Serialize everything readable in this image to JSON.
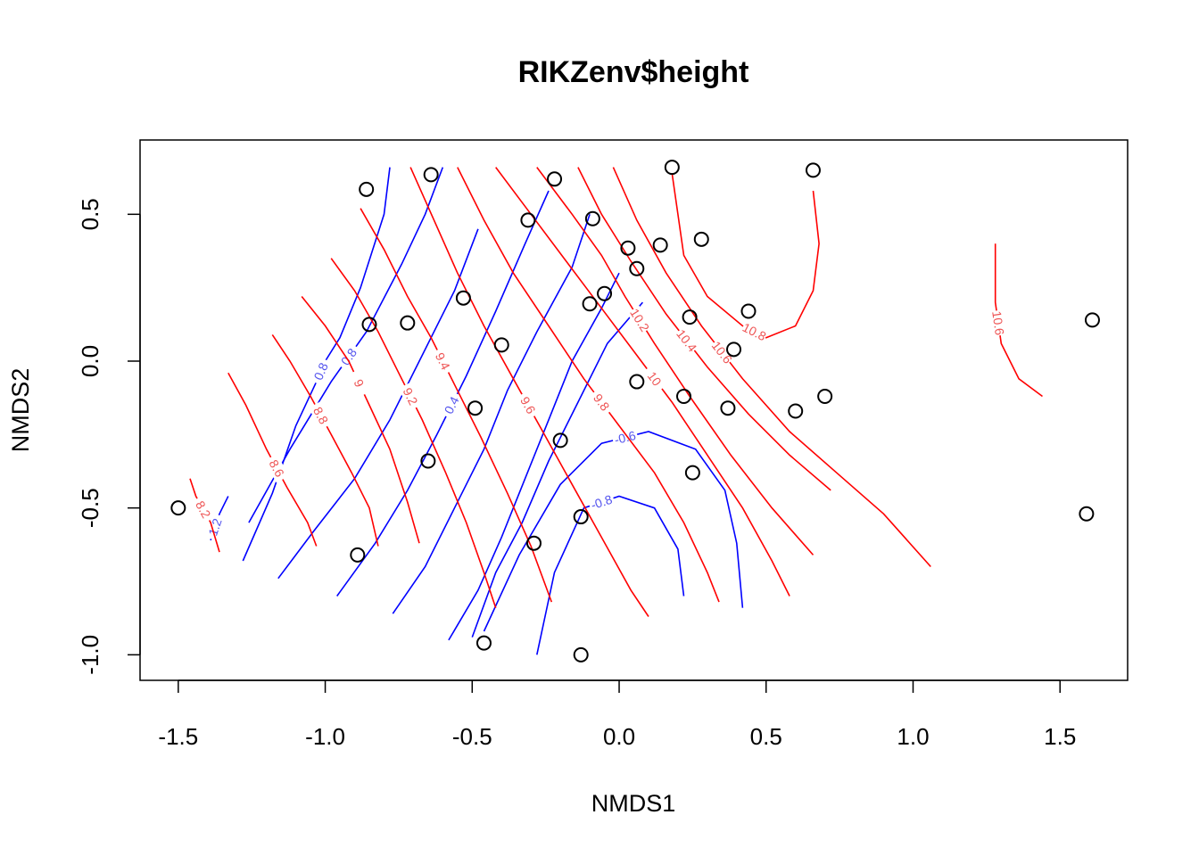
{
  "chart_data": {
    "type": "scatter",
    "title": "RIKZenv$height",
    "xlabel": "NMDS1",
    "ylabel": "NMDS2",
    "xlim": [
      -1.63,
      1.73
    ],
    "ylim": [
      -1.087,
      0.753
    ],
    "xticks": [
      "-1.5",
      "-1.0",
      "-0.5",
      "0.0",
      "0.5",
      "1.0",
      "1.5"
    ],
    "xtick_values": [
      -1.5,
      -1.0,
      -0.5,
      0.0,
      0.5,
      1.0,
      1.5
    ],
    "yticks": [
      "-1.0",
      "-0.5",
      "0.0",
      "0.5"
    ],
    "ytick_values": [
      -1.0,
      -0.5,
      0.0,
      0.5
    ],
    "grid": false,
    "point_color": "#000000",
    "points": [
      [
        -0.86,
        0.585
      ],
      [
        -0.64,
        0.635
      ],
      [
        -0.22,
        0.62
      ],
      [
        0.18,
        0.66
      ],
      [
        0.66,
        0.65
      ],
      [
        -0.31,
        0.48
      ],
      [
        -0.09,
        0.485
      ],
      [
        0.03,
        0.385
      ],
      [
        0.14,
        0.395
      ],
      [
        0.28,
        0.415
      ],
      [
        0.06,
        0.315
      ],
      [
        -0.53,
        0.215
      ],
      [
        -0.05,
        0.23
      ],
      [
        -0.1,
        0.195
      ],
      [
        0.44,
        0.17
      ],
      [
        0.24,
        0.15
      ],
      [
        -0.85,
        0.125
      ],
      [
        -0.72,
        0.13
      ],
      [
        -0.4,
        0.055
      ],
      [
        0.39,
        0.04
      ],
      [
        1.61,
        0.14
      ],
      [
        0.06,
        -0.07
      ],
      [
        0.22,
        -0.12
      ],
      [
        0.7,
        -0.12
      ],
      [
        -0.49,
        -0.16
      ],
      [
        0.37,
        -0.16
      ],
      [
        0.6,
        -0.17
      ],
      [
        -0.2,
        -0.27
      ],
      [
        -0.65,
        -0.34
      ],
      [
        0.25,
        -0.38
      ],
      [
        -1.5,
        -0.5
      ],
      [
        1.59,
        -0.52
      ],
      [
        -0.13,
        -0.53
      ],
      [
        -0.29,
        -0.62
      ],
      [
        -0.89,
        -0.66
      ],
      [
        -0.46,
        -0.96
      ],
      [
        -0.13,
        -1.0
      ]
    ],
    "contours": [
      {
        "variable": "RIKZenv$height",
        "color": "#0000ff",
        "label_color": "#5555ee",
        "levels": [
          -0.8,
          -0.6,
          -0.4,
          -0.2,
          0,
          0.2,
          0.4,
          0.6,
          0.8,
          1,
          1.2,
          1.4,
          1.6
        ],
        "lines": [
          {
            "label": "1.2",
            "points": [
              [
                -1.39,
                -0.61
              ],
              [
                -1.36,
                -0.52
              ],
              [
                -1.33,
                -0.46
              ]
            ]
          },
          {
            "label": "0.8",
            "points": [
              [
                -1.28,
                -0.68
              ],
              [
                -1.18,
                -0.45
              ],
              [
                -1.1,
                -0.22
              ],
              [
                -1.03,
                -0.07
              ],
              [
                -1.0,
                0.0
              ],
              [
                -0.95,
                0.08
              ],
              [
                -0.88,
                0.25
              ],
              [
                -0.8,
                0.5
              ],
              [
                -0.78,
                0.66
              ]
            ]
          },
          {
            "label": "0.8",
            "points": [
              [
                -1.26,
                -0.55
              ],
              [
                -1.12,
                -0.3
              ],
              [
                -0.98,
                -0.07
              ],
              [
                -0.86,
                0.1
              ],
              [
                -0.74,
                0.33
              ],
              [
                -0.66,
                0.5
              ],
              [
                -0.6,
                0.66
              ]
            ]
          },
          {
            "label": "",
            "points": [
              [
                -1.16,
                -0.74
              ],
              [
                -1.04,
                -0.58
              ],
              [
                -0.9,
                -0.4
              ],
              [
                -0.78,
                -0.2
              ],
              [
                -0.68,
                0.0
              ],
              [
                -0.56,
                0.24
              ],
              [
                -0.48,
                0.45
              ]
            ]
          },
          {
            "label": "0.4",
            "points": [
              [
                -0.96,
                -0.8
              ],
              [
                -0.83,
                -0.62
              ],
              [
                -0.72,
                -0.44
              ],
              [
                -0.62,
                -0.25
              ],
              [
                -0.52,
                -0.05
              ],
              [
                -0.42,
                0.17
              ],
              [
                -0.32,
                0.4
              ],
              [
                -0.24,
                0.58
              ]
            ]
          },
          {
            "label": "",
            "points": [
              [
                -0.77,
                -0.86
              ],
              [
                -0.66,
                -0.7
              ],
              [
                -0.56,
                -0.5
              ],
              [
                -0.46,
                -0.3
              ],
              [
                -0.38,
                -0.1
              ],
              [
                -0.28,
                0.1
              ],
              [
                -0.16,
                0.32
              ],
              [
                -0.1,
                0.5
              ]
            ]
          },
          {
            "label": "",
            "points": [
              [
                -0.58,
                -0.95
              ],
              [
                -0.48,
                -0.78
              ],
              [
                -0.4,
                -0.6
              ],
              [
                -0.32,
                -0.4
              ],
              [
                -0.24,
                -0.2
              ],
              [
                -0.16,
                0.0
              ],
              [
                -0.06,
                0.18
              ],
              [
                0.0,
                0.3
              ]
            ]
          },
          {
            "label": "",
            "points": [
              [
                -0.5,
                -0.94
              ],
              [
                -0.42,
                -0.72
              ],
              [
                -0.33,
                -0.55
              ],
              [
                -0.24,
                -0.34
              ],
              [
                -0.14,
                -0.14
              ],
              [
                -0.04,
                0.06
              ],
              [
                0.08,
                0.2
              ]
            ]
          },
          {
            "label": "-0.8",
            "points": [
              [
                -0.28,
                -1.0
              ],
              [
                -0.22,
                -0.72
              ],
              [
                -0.12,
                -0.5
              ],
              [
                0.0,
                -0.46
              ],
              [
                0.12,
                -0.5
              ],
              [
                0.2,
                -0.64
              ],
              [
                0.22,
                -0.8
              ]
            ]
          },
          {
            "label": "-0.6",
            "points": [
              [
                -0.46,
                -0.92
              ],
              [
                -0.34,
                -0.66
              ],
              [
                -0.2,
                -0.42
              ],
              [
                -0.06,
                -0.28
              ],
              [
                0.1,
                -0.24
              ],
              [
                0.26,
                -0.3
              ],
              [
                0.36,
                -0.44
              ],
              [
                0.4,
                -0.62
              ],
              [
                0.42,
                -0.84
              ]
            ]
          }
        ]
      },
      {
        "variable": "RIKZenv$height",
        "color": "#ff0000",
        "label_color": "#ee5555",
        "levels": [
          8.2,
          8.4,
          8.6,
          8.8,
          9,
          9.2,
          9.4,
          9.6,
          9.8,
          10,
          10.2,
          10.4,
          10.6,
          10.8
        ],
        "lines": [
          {
            "label": "8.2",
            "points": [
              [
                -1.46,
                -0.4
              ],
              [
                -1.44,
                -0.46
              ],
              [
                -1.39,
                -0.55
              ],
              [
                -1.36,
                -0.65
              ]
            ]
          },
          {
            "label": "8.6",
            "points": [
              [
                -1.33,
                -0.04
              ],
              [
                -1.27,
                -0.15
              ],
              [
                -1.2,
                -0.3
              ],
              [
                -1.13,
                -0.43
              ],
              [
                -1.06,
                -0.55
              ],
              [
                -1.03,
                -0.63
              ]
            ]
          },
          {
            "label": "8.8",
            "points": [
              [
                -1.18,
                0.09
              ],
              [
                -1.12,
                0.0
              ],
              [
                -1.05,
                -0.12
              ],
              [
                -0.98,
                -0.25
              ],
              [
                -0.91,
                -0.38
              ],
              [
                -0.85,
                -0.5
              ],
              [
                -0.82,
                -0.63
              ]
            ]
          },
          {
            "label": "9",
            "points": [
              [
                -1.08,
                0.22
              ],
              [
                -1.0,
                0.12
              ],
              [
                -0.92,
                0.0
              ],
              [
                -0.85,
                -0.15
              ],
              [
                -0.78,
                -0.3
              ],
              [
                -0.72,
                -0.48
              ],
              [
                -0.68,
                -0.62
              ]
            ]
          },
          {
            "label": "9.2",
            "points": [
              [
                -0.98,
                0.35
              ],
              [
                -0.9,
                0.24
              ],
              [
                -0.82,
                0.1
              ],
              [
                -0.75,
                -0.04
              ],
              [
                -0.67,
                -0.2
              ],
              [
                -0.59,
                -0.38
              ],
              [
                -0.52,
                -0.55
              ],
              [
                -0.46,
                -0.72
              ],
              [
                -0.42,
                -0.84
              ]
            ]
          },
          {
            "label": "9.4",
            "points": [
              [
                -0.88,
                0.52
              ],
              [
                -0.8,
                0.38
              ],
              [
                -0.72,
                0.22
              ],
              [
                -0.64,
                0.08
              ],
              [
                -0.56,
                -0.08
              ],
              [
                -0.47,
                -0.26
              ],
              [
                -0.38,
                -0.45
              ],
              [
                -0.3,
                -0.63
              ],
              [
                -0.23,
                -0.82
              ]
            ]
          },
          {
            "label": "9.6",
            "points": [
              [
                -0.71,
                0.66
              ],
              [
                -0.63,
                0.48
              ],
              [
                -0.55,
                0.3
              ],
              [
                -0.46,
                0.12
              ],
              [
                -0.36,
                -0.06
              ],
              [
                -0.26,
                -0.24
              ],
              [
                -0.16,
                -0.42
              ],
              [
                -0.06,
                -0.6
              ],
              [
                0.04,
                -0.78
              ],
              [
                0.1,
                -0.87
              ]
            ]
          },
          {
            "label": "9.8",
            "points": [
              [
                -0.55,
                0.66
              ],
              [
                -0.46,
                0.48
              ],
              [
                -0.36,
                0.3
              ],
              [
                -0.24,
                0.12
              ],
              [
                -0.12,
                -0.06
              ],
              [
                0.0,
                -0.22
              ],
              [
                0.12,
                -0.38
              ],
              [
                0.22,
                -0.55
              ],
              [
                0.3,
                -0.72
              ],
              [
                0.34,
                -0.82
              ]
            ]
          },
          {
            "label": "10",
            "points": [
              [
                -0.42,
                0.66
              ],
              [
                -0.3,
                0.5
              ],
              [
                -0.18,
                0.34
              ],
              [
                -0.06,
                0.18
              ],
              [
                0.06,
                0.02
              ],
              [
                0.18,
                -0.14
              ],
              [
                0.3,
                -0.32
              ],
              [
                0.42,
                -0.5
              ],
              [
                0.52,
                -0.68
              ],
              [
                0.58,
                -0.8
              ]
            ]
          },
          {
            "label": "10.2",
            "points": [
              [
                -0.28,
                0.66
              ],
              [
                -0.16,
                0.5
              ],
              [
                -0.06,
                0.36
              ],
              [
                0.02,
                0.22
              ],
              [
                0.12,
                0.06
              ],
              [
                0.24,
                -0.12
              ],
              [
                0.38,
                -0.32
              ],
              [
                0.52,
                -0.5
              ],
              [
                0.66,
                -0.66
              ]
            ]
          },
          {
            "label": "10.4",
            "points": [
              [
                -0.14,
                0.66
              ],
              [
                -0.06,
                0.5
              ],
              [
                0.04,
                0.34
              ],
              [
                0.16,
                0.16
              ],
              [
                0.3,
                -0.02
              ],
              [
                0.44,
                -0.18
              ],
              [
                0.58,
                -0.32
              ],
              [
                0.72,
                -0.44
              ]
            ]
          },
          {
            "label": "10.6",
            "points": [
              [
                -0.02,
                0.66
              ],
              [
                0.06,
                0.48
              ],
              [
                0.16,
                0.3
              ],
              [
                0.28,
                0.12
              ],
              [
                0.42,
                -0.06
              ],
              [
                0.58,
                -0.24
              ],
              [
                0.74,
                -0.38
              ],
              [
                0.9,
                -0.52
              ],
              [
                1.06,
                -0.7
              ]
            ]
          },
          {
            "label": "10.8",
            "points": [
              [
                0.18,
                0.64
              ],
              [
                0.2,
                0.5
              ],
              [
                0.22,
                0.36
              ],
              [
                0.3,
                0.22
              ],
              [
                0.42,
                0.12
              ],
              [
                0.5,
                0.08
              ],
              [
                0.6,
                0.12
              ],
              [
                0.66,
                0.24
              ],
              [
                0.68,
                0.4
              ],
              [
                0.66,
                0.58
              ]
            ]
          },
          {
            "label": "10.6",
            "points": [
              [
                1.28,
                0.4
              ],
              [
                1.28,
                0.2
              ],
              [
                1.3,
                0.06
              ],
              [
                1.36,
                -0.06
              ],
              [
                1.44,
                -0.12
              ]
            ]
          }
        ]
      }
    ]
  }
}
